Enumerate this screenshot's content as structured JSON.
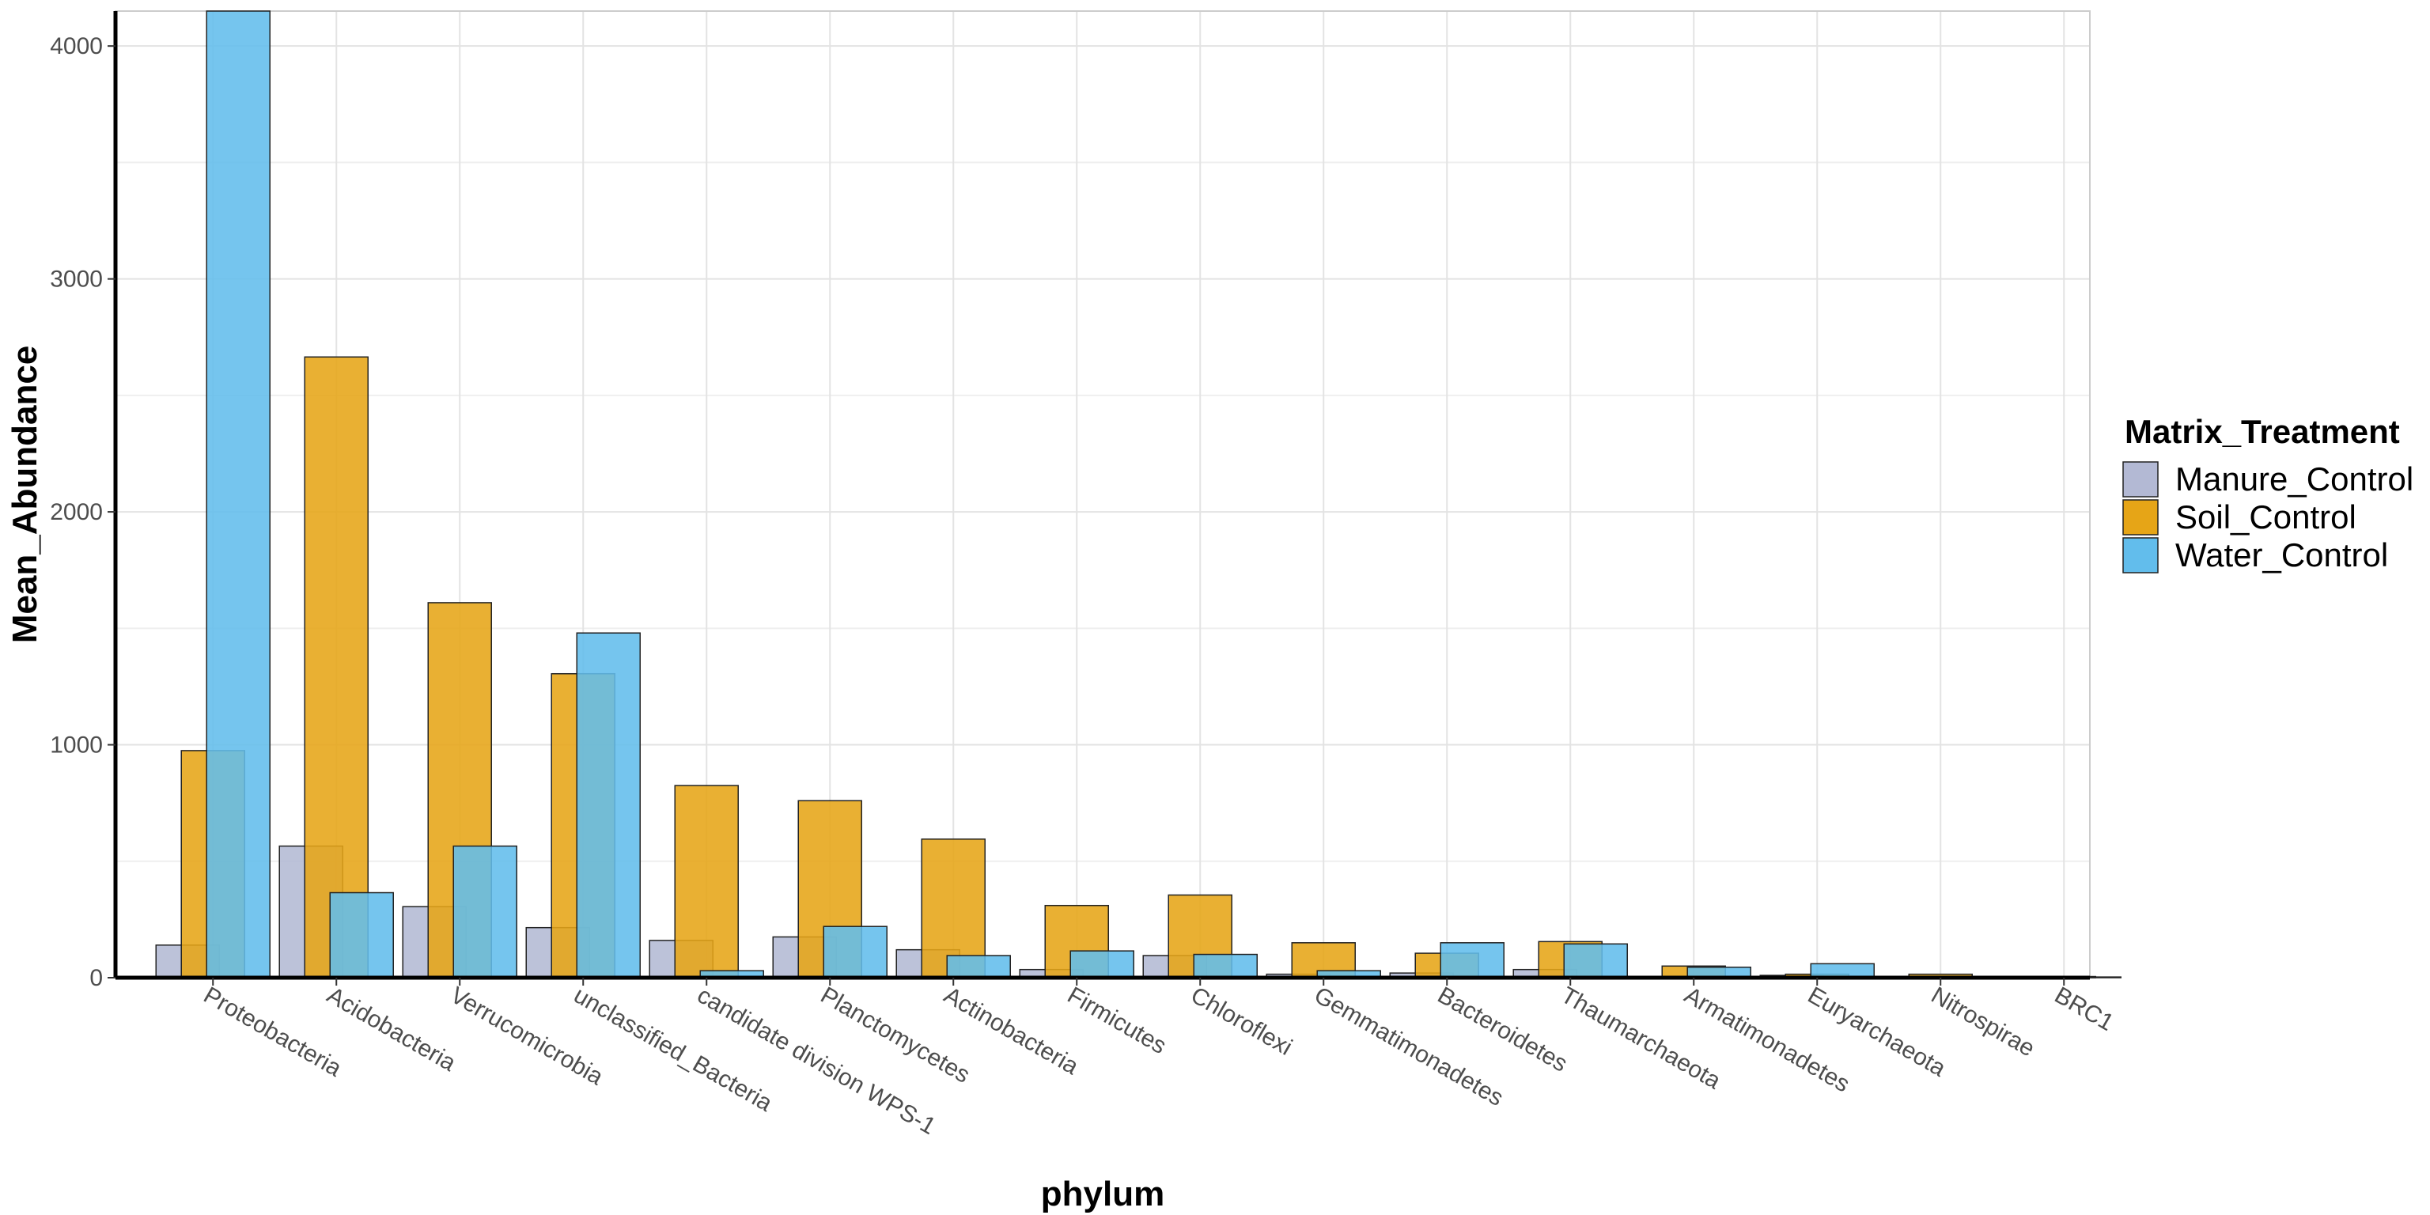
{
  "chart_data": {
    "type": "bar",
    "title": "",
    "xlabel": "phylum",
    "ylabel": "Mean_Abundance",
    "ylim": [
      0,
      4150
    ],
    "yticks": [
      0,
      1000,
      2000,
      3000,
      4000
    ],
    "grid": true,
    "legend_title": "Matrix_Treatment",
    "legend_position": "right",
    "categories": [
      "Proteobacteria",
      "Acidobacteria",
      "Verrucomicrobia",
      "unclassified_Bacteria",
      "candidate division WPS-1",
      "Planctomycetes",
      "Actinobacteria",
      "Firmicutes",
      "Chloroflexi",
      "Gemmatimonadetes",
      "Bacteroidetes",
      "Thaumarchaeota",
      "Armatimonadetes",
      "Euryarchaeota",
      "Nitrospirae",
      "BRC1"
    ],
    "series": [
      {
        "name": "Manure_Control",
        "color": "#b3b9d4",
        "values": [
          140,
          565,
          305,
          215,
          160,
          175,
          120,
          35,
          95,
          15,
          20,
          35,
          5,
          10,
          5,
          3
        ]
      },
      {
        "name": "Soil_Control",
        "color": "#e6a517",
        "values": [
          975,
          2665,
          1610,
          1305,
          825,
          760,
          595,
          310,
          355,
          150,
          105,
          155,
          50,
          15,
          15,
          5
        ]
      },
      {
        "name": "Water_Control",
        "color": "#62bdec",
        "values": [
          4150,
          365,
          565,
          1480,
          30,
          220,
          95,
          115,
          100,
          30,
          150,
          145,
          45,
          60,
          5,
          3
        ]
      }
    ]
  }
}
